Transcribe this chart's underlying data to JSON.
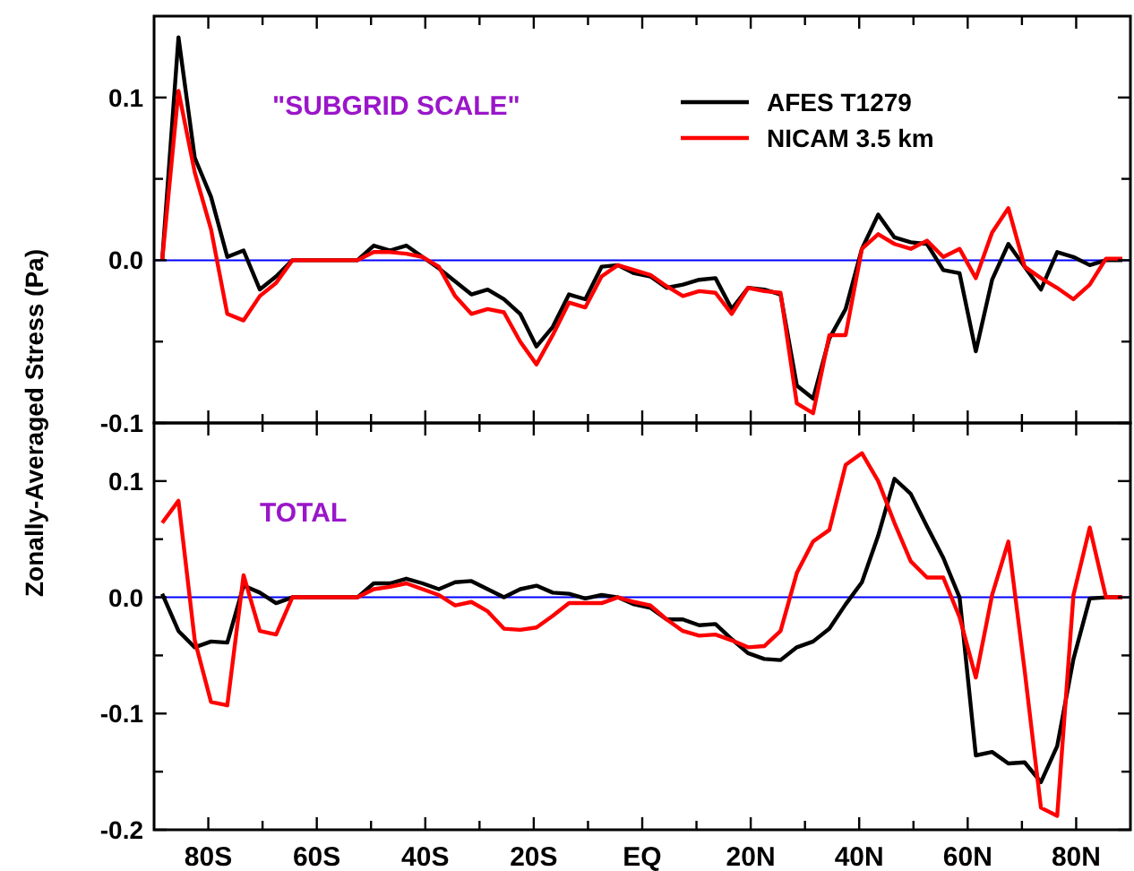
{
  "chart_data": [
    {
      "type": "line",
      "annotations": [
        "\"SUBGRID SCALE\""
      ],
      "ylabel": "Zonally-Averaged Stress (Pa)",
      "x": [
        -88.5,
        -85.5,
        -82.5,
        -79.5,
        -76.5,
        -73.5,
        -70.5,
        -67.5,
        -64.5,
        -61.5,
        -58.5,
        -55.5,
        -52.5,
        -49.5,
        -46.5,
        -43.5,
        -40.5,
        -37.5,
        -34.5,
        -31.5,
        -28.5,
        -25.5,
        -22.5,
        -19.5,
        -16.5,
        -13.5,
        -10.5,
        -7.5,
        -4.5,
        -1.5,
        1.5,
        4.5,
        7.5,
        10.5,
        13.5,
        16.5,
        19.5,
        22.5,
        25.5,
        28.5,
        31.5,
        34.5,
        37.5,
        40.5,
        43.5,
        46.5,
        49.5,
        52.5,
        55.5,
        58.5,
        61.5,
        64.5,
        67.5,
        70.5,
        73.5,
        76.5,
        79.5,
        82.5,
        85.5,
        88.5
      ],
      "series": [
        {
          "name": "AFES T1279",
          "color": "#000000",
          "values": [
            0,
            0.137,
            0.063,
            0.039,
            0.002,
            0.006,
            -0.018,
            -0.01,
            0,
            0,
            0,
            0,
            0,
            0.009,
            0.006,
            0.009,
            0.002,
            -0.005,
            -0.013,
            -0.021,
            -0.018,
            -0.024,
            -0.033,
            -0.053,
            -0.041,
            -0.021,
            -0.024,
            -0.004,
            -0.003,
            -0.008,
            -0.01,
            -0.017,
            -0.015,
            -0.012,
            -0.011,
            -0.03,
            -0.017,
            -0.018,
            -0.021,
            -0.077,
            -0.085,
            -0.048,
            -0.03,
            0.007,
            0.028,
            0.014,
            0.011,
            0.01,
            -0.006,
            -0.008,
            -0.056,
            -0.012,
            0.01,
            -0.004,
            -0.018,
            0.005,
            0.002,
            -0.003,
            0,
            0
          ]
        },
        {
          "name": "NICAM 3.5 km",
          "color": "#ff0000",
          "values": [
            0,
            0.104,
            0.054,
            0.019,
            -0.033,
            -0.037,
            -0.022,
            -0.014,
            0,
            0,
            0,
            0,
            0,
            0.005,
            0.005,
            0.004,
            0.002,
            -0.004,
            -0.022,
            -0.033,
            -0.03,
            -0.032,
            -0.05,
            -0.064,
            -0.046,
            -0.026,
            -0.029,
            -0.01,
            -0.003,
            -0.006,
            -0.009,
            -0.016,
            -0.022,
            -0.019,
            -0.02,
            -0.033,
            -0.017,
            -0.019,
            -0.02,
            -0.088,
            -0.094,
            -0.046,
            -0.046,
            0.007,
            0.016,
            0.01,
            0.007,
            0.012,
            0.002,
            0.007,
            -0.011,
            0.017,
            0.032,
            -0.004,
            -0.011,
            -0.017,
            -0.024,
            -0.015,
            0.001,
            0.001
          ]
        }
      ],
      "xlim": [
        -90,
        90
      ],
      "ylim": [
        -0.1,
        0.15
      ],
      "xticks": [
        {
          "value": -80,
          "label": null
        },
        {
          "value": -70,
          "label": null
        },
        {
          "value": -60,
          "label": null
        },
        {
          "value": -50,
          "label": null
        },
        {
          "value": -40,
          "label": null
        },
        {
          "value": -30,
          "label": null
        },
        {
          "value": -20,
          "label": null
        },
        {
          "value": -10,
          "label": null
        },
        {
          "value": 0,
          "label": null
        },
        {
          "value": 10,
          "label": null
        },
        {
          "value": 20,
          "label": null
        },
        {
          "value": 30,
          "label": null
        },
        {
          "value": 40,
          "label": null
        },
        {
          "value": 50,
          "label": null
        },
        {
          "value": 60,
          "label": null
        },
        {
          "value": 70,
          "label": null
        },
        {
          "value": 80,
          "label": null
        }
      ],
      "yticks": [
        {
          "value": -0.1,
          "label": "-0.1"
        },
        {
          "value": -0.05,
          "label": null
        },
        {
          "value": 0,
          "label": "0.0"
        },
        {
          "value": 0.05,
          "label": null
        },
        {
          "value": 0.1,
          "label": "0.1"
        }
      ],
      "tick_labels": "y",
      "legend": "top right",
      "line_style": "solid",
      "marker": "none",
      "ref_lines": [
        {
          "axis": "y",
          "value": 0,
          "color": "#0000ff"
        }
      ]
    },
    {
      "type": "line",
      "annotations": [
        "TOTAL"
      ],
      "x": [
        -88.5,
        -85.5,
        -82.5,
        -79.5,
        -76.5,
        -73.5,
        -70.5,
        -67.5,
        -64.5,
        -61.5,
        -58.5,
        -55.5,
        -52.5,
        -49.5,
        -46.5,
        -43.5,
        -40.5,
        -37.5,
        -34.5,
        -31.5,
        -28.5,
        -25.5,
        -22.5,
        -19.5,
        -16.5,
        -13.5,
        -10.5,
        -7.5,
        -4.5,
        -1.5,
        1.5,
        4.5,
        7.5,
        10.5,
        13.5,
        16.5,
        19.5,
        22.5,
        25.5,
        28.5,
        31.5,
        34.5,
        37.5,
        40.5,
        43.5,
        46.5,
        49.5,
        52.5,
        55.5,
        58.5,
        61.5,
        64.5,
        67.5,
        70.5,
        73.5,
        76.5,
        79.5,
        82.5,
        85.5,
        88.5
      ],
      "series": [
        {
          "color": "#000000",
          "values": [
            0.003,
            -0.029,
            -0.043,
            -0.038,
            -0.039,
            0.01,
            0.004,
            -0.005,
            0,
            0,
            0,
            0,
            0,
            0.012,
            0.012,
            0.016,
            0.012,
            0.007,
            0.013,
            0.014,
            0.007,
            0,
            0.007,
            0.01,
            0.004,
            0.003,
            -0.001,
            0.002,
            0,
            -0.006,
            -0.009,
            -0.019,
            -0.019,
            -0.024,
            -0.023,
            -0.036,
            -0.048,
            -0.053,
            -0.054,
            -0.043,
            -0.038,
            -0.027,
            -0.006,
            0.013,
            0.053,
            0.102,
            0.089,
            0.061,
            0.034,
            0,
            -0.136,
            -0.133,
            -0.143,
            -0.142,
            -0.159,
            -0.128,
            -0.053,
            -0.001,
            0,
            0
          ]
        },
        {
          "color": "#ff0000",
          "values": [
            0.064,
            0.083,
            -0.037,
            -0.09,
            -0.093,
            0.019,
            -0.029,
            -0.032,
            0,
            0,
            0,
            0,
            0,
            0.007,
            0.009,
            0.012,
            0.007,
            0.002,
            -0.007,
            -0.004,
            -0.012,
            -0.027,
            -0.028,
            -0.026,
            -0.016,
            -0.005,
            -0.005,
            -0.005,
            0,
            -0.004,
            -0.007,
            -0.019,
            -0.029,
            -0.033,
            -0.032,
            -0.037,
            -0.043,
            -0.042,
            -0.029,
            0.021,
            0.048,
            0.058,
            0.114,
            0.124,
            0.1,
            0.064,
            0.031,
            0.017,
            0.017,
            -0.017,
            -0.069,
            0.002,
            0.048,
            -0.063,
            -0.181,
            -0.188,
            0.002,
            0.06,
            0,
            0
          ]
        }
      ],
      "xlim": [
        -90,
        90
      ],
      "ylim": [
        -0.2,
        0.15
      ],
      "xticks": [
        {
          "value": -80,
          "label": "80S"
        },
        {
          "value": -70,
          "label": null
        },
        {
          "value": -60,
          "label": "60S"
        },
        {
          "value": -50,
          "label": null
        },
        {
          "value": -40,
          "label": "40S"
        },
        {
          "value": -30,
          "label": null
        },
        {
          "value": -20,
          "label": "20S"
        },
        {
          "value": -10,
          "label": null
        },
        {
          "value": 0,
          "label": "EQ"
        },
        {
          "value": 10,
          "label": null
        },
        {
          "value": 20,
          "label": "20N"
        },
        {
          "value": 30,
          "label": null
        },
        {
          "value": 40,
          "label": "40N"
        },
        {
          "value": 50,
          "label": null
        },
        {
          "value": 60,
          "label": "60N"
        },
        {
          "value": 70,
          "label": null
        },
        {
          "value": 80,
          "label": "80N"
        }
      ],
      "yticks": [
        {
          "value": -0.2,
          "label": "-0.2"
        },
        {
          "value": -0.15,
          "label": null
        },
        {
          "value": -0.1,
          "label": "-0.1"
        },
        {
          "value": -0.05,
          "label": null
        },
        {
          "value": 0,
          "label": "0.0"
        },
        {
          "value": 0.05,
          "label": null
        },
        {
          "value": 0.1,
          "label": "0.1"
        }
      ],
      "line_style": "solid",
      "marker": "none",
      "ref_lines": [
        {
          "axis": "y",
          "value": 0,
          "color": "#0000ff"
        }
      ]
    }
  ]
}
